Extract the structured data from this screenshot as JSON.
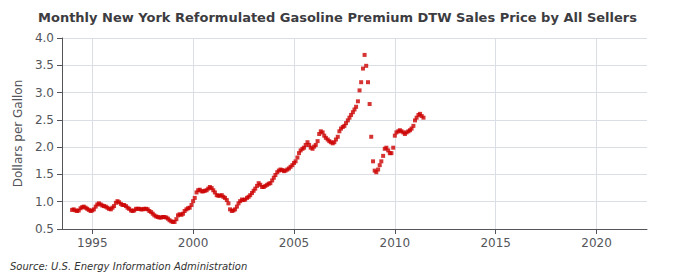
{
  "chart_data": {
    "type": "scatter",
    "title": "Monthly New York Reformulated Gasoline Premium DTW Sales Price by All Sellers",
    "ylabel": "Dollars per Gallon",
    "source": "Source: U.S. Energy Information Administration",
    "color": "#cc0000",
    "marker": "square",
    "grid": true,
    "xlim": [
      1993.5,
      2022.5
    ],
    "xticks": [
      1995,
      2000,
      2005,
      2010,
      2015,
      2020
    ],
    "ylim": [
      0.5,
      4.0
    ],
    "yticks": [
      0.5,
      {
        "value": 1.0,
        "label": "1.0"
      },
      1.5,
      {
        "value": 2.0,
        "label": "2.0"
      },
      2.5,
      {
        "value": 3.0,
        "label": "3.0"
      },
      3.5,
      {
        "value": 4.0,
        "label": "4.0"
      }
    ],
    "x": [
      1994.0,
      1994.08,
      1994.17,
      1994.25,
      1994.33,
      1994.42,
      1994.5,
      1994.58,
      1994.67,
      1994.75,
      1994.83,
      1994.92,
      1995.0,
      1995.08,
      1995.17,
      1995.25,
      1995.33,
      1995.42,
      1995.5,
      1995.58,
      1995.67,
      1995.75,
      1995.83,
      1995.92,
      1996.0,
      1996.08,
      1996.17,
      1996.25,
      1996.33,
      1996.42,
      1996.5,
      1996.58,
      1996.67,
      1996.75,
      1996.83,
      1996.92,
      1997.0,
      1997.08,
      1997.17,
      1997.25,
      1997.33,
      1997.42,
      1997.5,
      1997.58,
      1997.67,
      1997.75,
      1997.83,
      1997.92,
      1998.0,
      1998.08,
      1998.17,
      1998.25,
      1998.33,
      1998.42,
      1998.5,
      1998.58,
      1998.67,
      1998.75,
      1998.83,
      1998.92,
      1999.0,
      1999.08,
      1999.17,
      1999.25,
      1999.33,
      1999.42,
      1999.5,
      1999.58,
      1999.67,
      1999.75,
      1999.83,
      1999.92,
      2000.0,
      2000.08,
      2000.17,
      2000.25,
      2000.33,
      2000.42,
      2000.5,
      2000.58,
      2000.67,
      2000.75,
      2000.83,
      2000.92,
      2001.0,
      2001.08,
      2001.17,
      2001.25,
      2001.33,
      2001.42,
      2001.5,
      2001.58,
      2001.67,
      2001.75,
      2001.83,
      2001.92,
      2002.0,
      2002.08,
      2002.17,
      2002.25,
      2002.33,
      2002.42,
      2002.5,
      2002.58,
      2002.67,
      2002.75,
      2002.83,
      2002.92,
      2003.0,
      2003.08,
      2003.17,
      2003.25,
      2003.33,
      2003.42,
      2003.5,
      2003.58,
      2003.67,
      2003.75,
      2003.83,
      2003.92,
      2004.0,
      2004.08,
      2004.17,
      2004.25,
      2004.33,
      2004.42,
      2004.5,
      2004.58,
      2004.67,
      2004.75,
      2004.83,
      2004.92,
      2005.0,
      2005.08,
      2005.17,
      2005.25,
      2005.33,
      2005.42,
      2005.5,
      2005.58,
      2005.67,
      2005.75,
      2005.83,
      2005.92,
      2006.0,
      2006.08,
      2006.17,
      2006.25,
      2006.33,
      2006.42,
      2006.5,
      2006.58,
      2006.67,
      2006.75,
      2006.83,
      2006.92,
      2007.0,
      2007.08,
      2007.17,
      2007.25,
      2007.33,
      2007.42,
      2007.5,
      2007.58,
      2007.67,
      2007.75,
      2007.83,
      2007.92,
      2008.0,
      2008.08,
      2008.17,
      2008.25,
      2008.33,
      2008.42,
      2008.5,
      2008.58,
      2008.67,
      2008.75,
      2008.83,
      2008.92,
      2009.0,
      2009.08,
      2009.17,
      2009.25,
      2009.33,
      2009.42,
      2009.5,
      2009.58,
      2009.67,
      2009.75,
      2009.83,
      2009.92,
      2010.0,
      2010.08,
      2010.17,
      2010.25,
      2010.33,
      2010.42,
      2010.5,
      2010.58,
      2010.67,
      2010.75,
      2010.83,
      2010.92,
      2011.0,
      2011.08,
      2011.17,
      2011.25,
      2011.33,
      2011.42
    ],
    "values": [
      0.85,
      0.86,
      0.84,
      0.83,
      0.84,
      0.88,
      0.9,
      0.91,
      0.89,
      0.87,
      0.85,
      0.83,
      0.84,
      0.86,
      0.91,
      0.95,
      0.97,
      0.95,
      0.93,
      0.92,
      0.91,
      0.89,
      0.87,
      0.86,
      0.89,
      0.92,
      0.98,
      1.01,
      0.99,
      0.96,
      0.94,
      0.94,
      0.92,
      0.89,
      0.87,
      0.84,
      0.83,
      0.84,
      0.87,
      0.87,
      0.87,
      0.86,
      0.86,
      0.87,
      0.87,
      0.86,
      0.83,
      0.81,
      0.78,
      0.75,
      0.73,
      0.72,
      0.71,
      0.71,
      0.72,
      0.72,
      0.71,
      0.69,
      0.66,
      0.64,
      0.63,
      0.63,
      0.68,
      0.75,
      0.77,
      0.76,
      0.78,
      0.83,
      0.86,
      0.88,
      0.89,
      0.94,
      1.01,
      1.07,
      1.17,
      1.21,
      1.22,
      1.19,
      1.19,
      1.2,
      1.21,
      1.24,
      1.27,
      1.25,
      1.21,
      1.17,
      1.12,
      1.11,
      1.11,
      1.12,
      1.09,
      1.07,
      1.03,
      0.97,
      0.86,
      0.83,
      0.84,
      0.86,
      0.91,
      0.97,
      1.01,
      1.04,
      1.03,
      1.04,
      1.07,
      1.09,
      1.12,
      1.16,
      1.2,
      1.24,
      1.29,
      1.34,
      1.31,
      1.27,
      1.27,
      1.29,
      1.31,
      1.33,
      1.34,
      1.39,
      1.44,
      1.49,
      1.54,
      1.57,
      1.59,
      1.58,
      1.56,
      1.57,
      1.59,
      1.61,
      1.64,
      1.67,
      1.71,
      1.74,
      1.81,
      1.89,
      1.94,
      1.97,
      1.99,
      2.04,
      2.09,
      2.04,
      1.99,
      1.97,
      2.01,
      2.04,
      2.11,
      2.24,
      2.29,
      2.27,
      2.21,
      2.17,
      2.14,
      2.11,
      2.09,
      2.07,
      2.09,
      2.14,
      2.19,
      2.29,
      2.34,
      2.37,
      2.39,
      2.44,
      2.49,
      2.54,
      2.59,
      2.64,
      2.69,
      2.74,
      2.84,
      3.04,
      3.19,
      3.44,
      3.69,
      3.49,
      3.19,
      2.79,
      2.19,
      1.74,
      1.57,
      1.54,
      1.59,
      1.67,
      1.74,
      1.84,
      1.97,
      1.99,
      1.94,
      1.89,
      1.89,
      1.99,
      2.21,
      2.27,
      2.29,
      2.31,
      2.29,
      2.27,
      2.24,
      2.27,
      2.29,
      2.31,
      2.34,
      2.39,
      2.49,
      2.54,
      2.59,
      2.61,
      2.57,
      2.54
    ]
  }
}
